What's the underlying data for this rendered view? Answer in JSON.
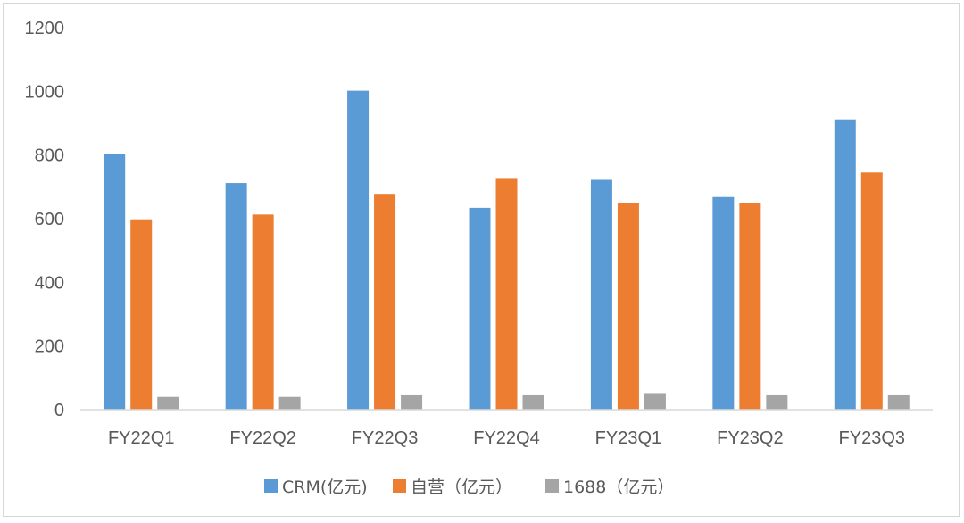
{
  "chart_data": {
    "type": "bar",
    "title": "",
    "xlabel": "",
    "ylabel": "",
    "categories": [
      "FY22Q1",
      "FY22Q2",
      "FY22Q3",
      "FY22Q4",
      "FY23Q1",
      "FY23Q2",
      "FY23Q3"
    ],
    "series": [
      {
        "name": "CRM(亿元)",
        "color": "#5b9bd5",
        "values": [
          803,
          712,
          1002,
          634,
          722,
          668,
          912
        ]
      },
      {
        "name": "自营（亿元）",
        "color": "#ed7d31",
        "values": [
          598,
          613,
          678,
          725,
          650,
          650,
          745
        ]
      },
      {
        "name": "1688（亿元）",
        "color": "#a5a5a5",
        "values": [
          40,
          40,
          45,
          45,
          52,
          45,
          45
        ]
      }
    ],
    "yticks": [
      "0",
      "200",
      "400",
      "600",
      "800",
      "1000",
      "1200"
    ],
    "ylim": [
      0,
      1200
    ],
    "grid": false,
    "legend_position": "bottom"
  }
}
